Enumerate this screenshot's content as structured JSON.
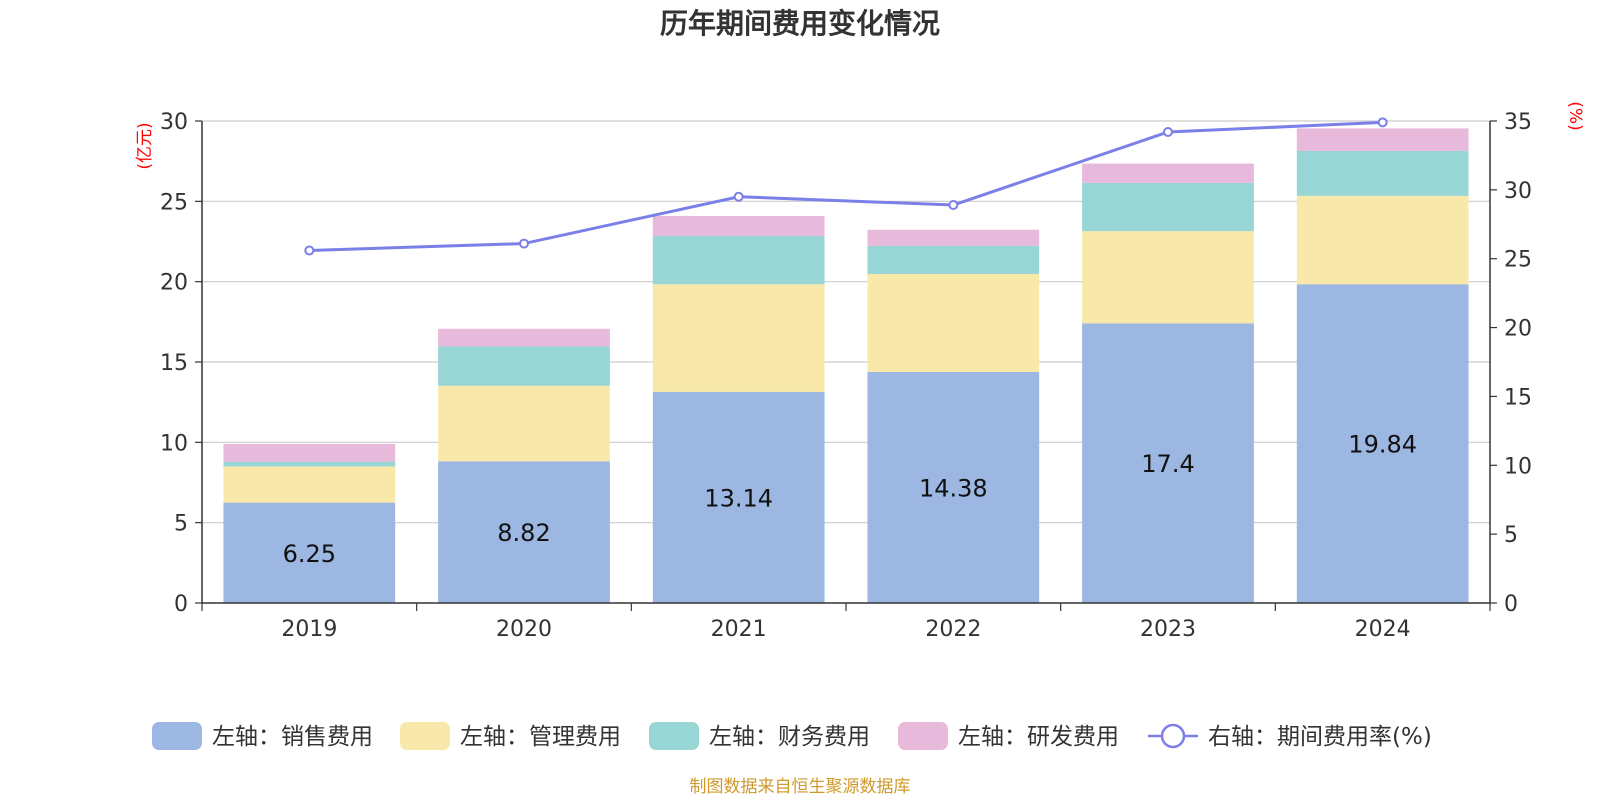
{
  "chart_data": {
    "type": "bar",
    "title": "历年期间费用变化情况",
    "categories": [
      "2019",
      "2020",
      "2021",
      "2022",
      "2023",
      "2024"
    ],
    "left_axis": {
      "unit": "(亿元)",
      "ylim": [
        0,
        30
      ],
      "ticks": [
        0,
        5,
        10,
        15,
        20,
        25,
        30
      ]
    },
    "right_axis": {
      "unit": "(%)",
      "ylim": [
        0,
        35
      ],
      "ticks": [
        0,
        5,
        10,
        15,
        20,
        25,
        30,
        35
      ]
    },
    "series": [
      {
        "name": "左轴：销售费用",
        "type": "bar",
        "axis": "left",
        "color": "#9bb7e2",
        "values": [
          6.25,
          8.82,
          13.14,
          14.38,
          17.4,
          19.84
        ],
        "show_labels": true
      },
      {
        "name": "左轴：管理费用",
        "type": "bar",
        "axis": "left",
        "color": "#f8e8a9",
        "values": [
          2.25,
          4.7,
          6.7,
          6.1,
          5.75,
          5.5
        ]
      },
      {
        "name": "左轴：财务费用",
        "type": "bar",
        "axis": "left",
        "color": "#98d5d5",
        "values": [
          0.3,
          2.45,
          3.0,
          1.75,
          3.0,
          2.8
        ]
      },
      {
        "name": "左轴：研发费用",
        "type": "bar",
        "axis": "left",
        "color": "#e7b9da",
        "values": [
          1.1,
          1.1,
          1.25,
          1.0,
          1.2,
          1.4
        ]
      },
      {
        "name": "右轴：期间费用率(%)",
        "type": "line",
        "axis": "right",
        "color": "#7b7fe8",
        "values": [
          25.6,
          26.1,
          29.5,
          28.9,
          34.2,
          34.9
        ]
      }
    ],
    "grid": true,
    "legend_position": "bottom"
  },
  "source": "制图数据来自恒生聚源数据库"
}
